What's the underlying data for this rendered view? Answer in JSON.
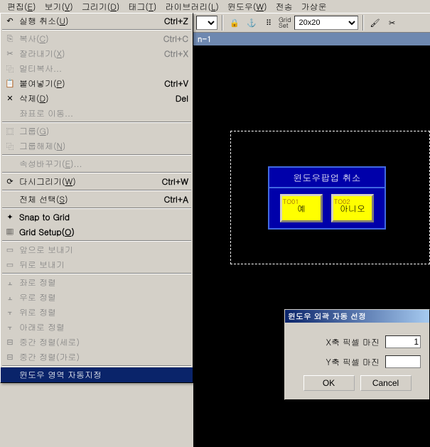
{
  "menubar": {
    "items": [
      {
        "label": "편집",
        "key": "E"
      },
      {
        "label": "보기",
        "key": "V"
      },
      {
        "label": "그리기",
        "key": "D"
      },
      {
        "label": "태그",
        "key": "T"
      },
      {
        "label": "라이브러리",
        "key": "L"
      },
      {
        "label": "윈도우",
        "key": "W"
      },
      {
        "label": "전송",
        "key": ""
      },
      {
        "label": "가상운",
        "key": ""
      }
    ]
  },
  "toolbar": {
    "grid_label": "Grid\nSet",
    "grid_value": "20x20"
  },
  "canvas": {
    "title": "n-1",
    "popup": {
      "title": "윈도우팝업 취소",
      "btn1_tag": "TO01",
      "btn1_label": "예",
      "btn2_tag": "TO02",
      "btn2_label": "아니오"
    }
  },
  "menu": {
    "items": [
      {
        "icon": "↶",
        "label": "실행 취소",
        "key": "U",
        "shortcut": "Ctrl+Z",
        "disabled": false
      },
      {
        "sep": true
      },
      {
        "icon": "⎘",
        "label": "복사",
        "key": "C",
        "shortcut": "Ctrl+C",
        "disabled": true
      },
      {
        "icon": "✂",
        "label": "잘라내기",
        "key": "X",
        "shortcut": "Ctrl+X",
        "disabled": true
      },
      {
        "icon": "⿻",
        "label": "멀티복사...",
        "key": "",
        "shortcut": "",
        "disabled": true
      },
      {
        "icon": "📋",
        "label": "붙여넣기",
        "key": "P",
        "shortcut": "Ctrl+V",
        "disabled": false
      },
      {
        "icon": "✕",
        "label": "삭제",
        "key": "D",
        "shortcut": "Del",
        "disabled": false
      },
      {
        "icon": "",
        "label": "좌표로 이동...",
        "key": "",
        "shortcut": "",
        "disabled": true
      },
      {
        "sep": true
      },
      {
        "icon": "⿴",
        "label": "그룹",
        "key": "G",
        "shortcut": "",
        "disabled": true
      },
      {
        "icon": "⿻",
        "label": "그룹해제",
        "key": "N",
        "shortcut": "",
        "disabled": true
      },
      {
        "sep": true
      },
      {
        "icon": "",
        "label": "속성바꾸기",
        "key": "E",
        "suffix": "...",
        "shortcut": "",
        "disabled": true
      },
      {
        "sep": true
      },
      {
        "icon": "⟳",
        "label": "다시그리기",
        "key": "W",
        "shortcut": "Ctrl+W",
        "disabled": false
      },
      {
        "sep": true
      },
      {
        "icon": "",
        "label": "전체 선택",
        "key": "S",
        "shortcut": "Ctrl+A",
        "disabled": false
      },
      {
        "sep": true
      },
      {
        "icon": "✦",
        "label_raw": "Snap to Grid",
        "key": "",
        "shortcut": "",
        "disabled": false
      },
      {
        "icon": "▦",
        "label_raw": "Grid Setup",
        "key": "O",
        "shortcut": "",
        "disabled": false,
        "prefix": "Grid\nSet "
      },
      {
        "sep": true
      },
      {
        "icon": "▭",
        "label": "앞으로 보내기",
        "key": "",
        "shortcut": "",
        "disabled": true
      },
      {
        "icon": "▭",
        "label": "뒤로 보내기",
        "key": "",
        "shortcut": "",
        "disabled": true
      },
      {
        "sep": true
      },
      {
        "icon": "⫠",
        "label": "좌로 정렬",
        "key": "",
        "shortcut": "",
        "disabled": true
      },
      {
        "icon": "⫠",
        "label": "우로 정렬",
        "key": "",
        "shortcut": "",
        "disabled": true
      },
      {
        "icon": "⫟",
        "label": "위로 정렬",
        "key": "",
        "shortcut": "",
        "disabled": true
      },
      {
        "icon": "⫟",
        "label": "아래로 정렬",
        "key": "",
        "shortcut": "",
        "disabled": true
      },
      {
        "icon": "⊟",
        "label": "중간 정렬(세로)",
        "key": "",
        "shortcut": "",
        "disabled": true
      },
      {
        "icon": "⊟",
        "label": "중간 정렬(가로)",
        "key": "",
        "shortcut": "",
        "disabled": true
      },
      {
        "sep": true
      },
      {
        "icon": "",
        "label": "윈도우 영역 자동지정",
        "key": "",
        "shortcut": "",
        "selected": true
      }
    ]
  },
  "dialog": {
    "title": "윈도우 외곽 자동 선정",
    "x_label": "X축 픽셀 마진",
    "y_label": "Y축 픽셀 마진",
    "x_value": "1",
    "y_value": "",
    "ok": "OK",
    "cancel": "Cancel"
  }
}
